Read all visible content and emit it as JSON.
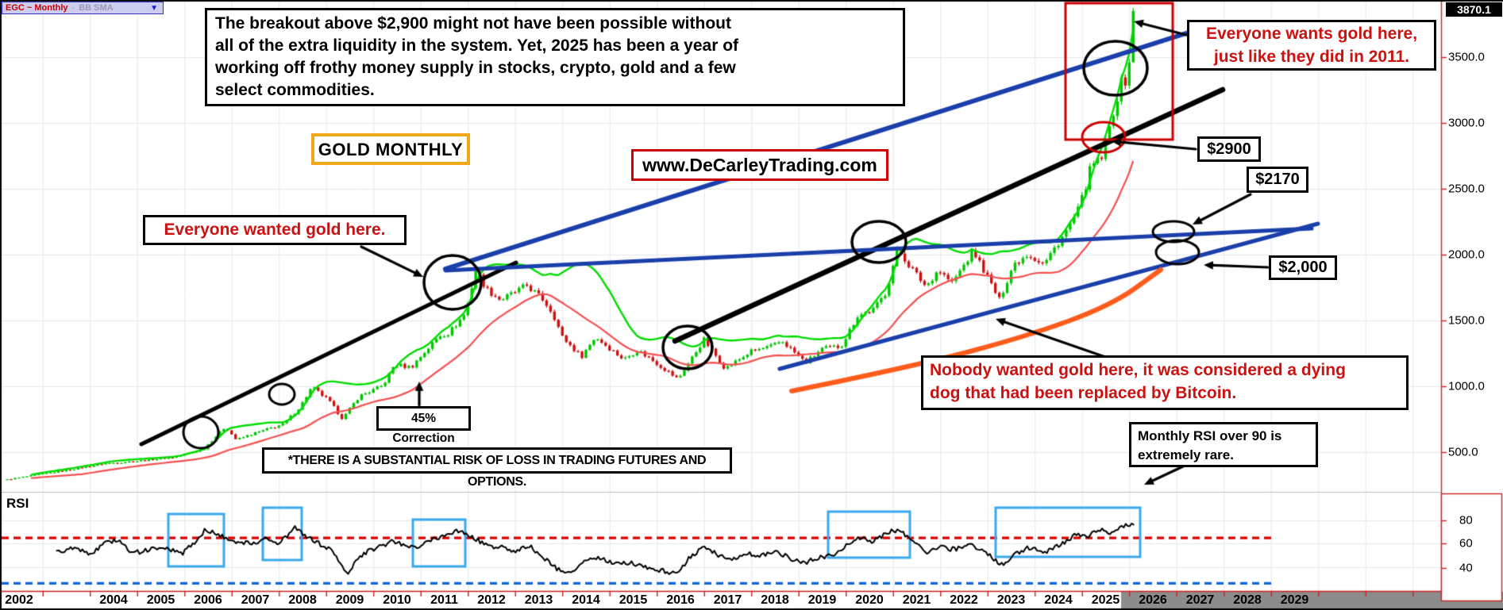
{
  "colors": {
    "candle_up": "#00c600",
    "candle_down": "#cf1010",
    "band_upper": "#00dd00",
    "band_lower": "#f65050",
    "trendline_black": "#000000",
    "trendline_blue": "#1a3faa",
    "curve_orange": "#ff5c1c",
    "rsi_box": "#3aa8ef",
    "overbought_dash": "#dd0000",
    "oversold_dash": "#1166dd",
    "axis_red": "#cc2222",
    "grid": "#e7e7ec",
    "future_strip": "#8c8c8c",
    "annotation_red_text": "#cc1111",
    "gold_border": "#f2a71b"
  },
  "symbol_bar": {
    "symbol": "EGC ~ Monthly",
    "separator": "-",
    "study": "BB SMA",
    "dropdown_icon": "▼"
  },
  "annotations": {
    "top_note_lines": [
      "The breakout above $2,900 might not have been possible without",
      "all of the extra liquidity in the system. Yet, 2025 has been a year of",
      "working off frothy money supply in stocks, crypto, gold and a few",
      "select commodities."
    ],
    "gold_monthly": "GOLD MONTHLY",
    "website": "www.DeCarleyTrading.com",
    "wanted_2011": "Everyone wanted gold here.",
    "wants_now_lines": [
      "Everyone wants gold here,",
      "just like they did in 2011."
    ],
    "price_2900": "$2900",
    "price_2170": "$2170",
    "price_2000": "$2,000",
    "correction": "45% Correction",
    "risk": "*THERE IS A SUBSTANTIAL RISK OF LOSS IN TRADING FUTURES AND OPTIONS.",
    "nobody_lines": [
      "Nobody wanted gold here, it was considered a dying",
      "dog that had been replaced by Bitcoin."
    ],
    "rsi_note_lines": [
      "Monthly RSI over 90 is",
      "extremely rare."
    ],
    "rsi_pane_label": "RSI"
  },
  "axes": {
    "years": [
      "2002",
      "2004",
      "2005",
      "2006",
      "2007",
      "2008",
      "2009",
      "2010",
      "2011",
      "2012",
      "2013",
      "2014",
      "2015",
      "2016",
      "2017",
      "2018",
      "2019",
      "2020",
      "2021",
      "2022",
      "2023",
      "2024",
      "2025",
      "2026",
      "2027",
      "2028",
      "2029"
    ],
    "price_ticks": [
      "3500.0",
      "3000.0",
      "2500.0",
      "2000.0",
      "1500.0",
      "1000.0",
      "500.0"
    ],
    "last_price": "3870.1",
    "rsi_ticks": [
      "80",
      "60",
      "40"
    ]
  },
  "chart_data": {
    "type": "candlestick",
    "title": "GOLD MONTHLY",
    "symbol": "EGC ~ Monthly",
    "study": "BB SMA",
    "x_axis": {
      "start_year": 2001.75,
      "end_year": 2029,
      "labeled_years_start": 2002,
      "future_shaded_from": 2025.4,
      "grid": true
    },
    "price_axis": {
      "ticks": [
        3500,
        3000,
        2500,
        2000,
        1500,
        1000,
        500
      ],
      "last_price": 3870.1
    },
    "monthly_close_anchors": [
      [
        2001.75,
        300
      ],
      [
        2002.3,
        330
      ],
      [
        2003.0,
        370
      ],
      [
        2003.8,
        420
      ],
      [
        2004.5,
        440
      ],
      [
        2005.3,
        470
      ],
      [
        2005.9,
        530
      ],
      [
        2006.37,
        700
      ],
      [
        2006.6,
        600
      ],
      [
        2006.9,
        640
      ],
      [
        2007.6,
        720
      ],
      [
        2007.95,
        850
      ],
      [
        2008.2,
        1000
      ],
      [
        2008.55,
        900
      ],
      [
        2008.85,
        760
      ],
      [
        2009.2,
        930
      ],
      [
        2009.7,
        1010
      ],
      [
        2009.95,
        1170
      ],
      [
        2010.3,
        1150
      ],
      [
        2010.9,
        1390
      ],
      [
        2011.1,
        1410
      ],
      [
        2011.45,
        1560
      ],
      [
        2011.67,
        1890
      ],
      [
        2011.9,
        1740
      ],
      [
        2012.2,
        1660
      ],
      [
        2012.75,
        1770
      ],
      [
        2013.1,
        1660
      ],
      [
        2013.3,
        1560
      ],
      [
        2013.5,
        1380
      ],
      [
        2013.9,
        1230
      ],
      [
        2014.2,
        1380
      ],
      [
        2014.8,
        1210
      ],
      [
        2015.1,
        1280
      ],
      [
        2015.5,
        1180
      ],
      [
        2015.95,
        1060
      ],
      [
        2016.5,
        1360
      ],
      [
        2016.95,
        1140
      ],
      [
        2017.5,
        1270
      ],
      [
        2017.95,
        1310
      ],
      [
        2018.15,
        1350
      ],
      [
        2018.65,
        1185
      ],
      [
        2019.0,
        1290
      ],
      [
        2019.4,
        1310
      ],
      [
        2019.75,
        1540
      ],
      [
        2020.1,
        1590
      ],
      [
        2020.35,
        1720
      ],
      [
        2020.6,
        2050
      ],
      [
        2020.85,
        1920
      ],
      [
        2021.2,
        1760
      ],
      [
        2021.45,
        1890
      ],
      [
        2021.75,
        1790
      ],
      [
        2022.2,
        2030
      ],
      [
        2022.45,
        1870
      ],
      [
        2022.75,
        1660
      ],
      [
        2023.05,
        1930
      ],
      [
        2023.35,
        2010
      ],
      [
        2023.7,
        1930
      ],
      [
        2023.95,
        2070
      ],
      [
        2024.2,
        2200
      ],
      [
        2024.45,
        2360
      ],
      [
        2024.7,
        2680
      ],
      [
        2024.9,
        2720
      ],
      [
        2025.05,
        2910
      ],
      [
        2025.2,
        3140
      ],
      [
        2025.33,
        3300
      ],
      [
        2025.45,
        3330
      ],
      [
        2025.55,
        3620
      ],
      [
        2025.62,
        3850
      ]
    ],
    "overlays": {
      "upper_band": "sma20_plus_2sd",
      "lower_band": "sma20_lower"
    },
    "levels": {
      "breakout": 2900,
      "resistance_from_2011": 2170,
      "round_support": 2000,
      "peak_2011": 1920,
      "correction_pct": 45
    },
    "rsi": {
      "overbought_level": 65,
      "oversold_level": 26,
      "ticks": [
        80,
        60,
        40
      ],
      "anchors": [
        [
          2002.8,
          52
        ],
        [
          2003.2,
          57
        ],
        [
          2003.5,
          50
        ],
        [
          2003.8,
          60
        ],
        [
          2004.1,
          63
        ],
        [
          2004.4,
          52
        ],
        [
          2004.8,
          55
        ],
        [
          2005.1,
          57
        ],
        [
          2005.45,
          51
        ],
        [
          2005.8,
          65
        ],
        [
          2005.95,
          72
        ],
        [
          2006.2,
          68
        ],
        [
          2006.45,
          63
        ],
        [
          2006.9,
          60
        ],
        [
          2007.2,
          64
        ],
        [
          2007.45,
          60
        ],
        [
          2007.7,
          67
        ],
        [
          2007.85,
          74
        ],
        [
          2008.1,
          66
        ],
        [
          2008.35,
          60
        ],
        [
          2008.6,
          55
        ],
        [
          2008.95,
          35
        ],
        [
          2009.3,
          52
        ],
        [
          2009.6,
          57
        ],
        [
          2009.9,
          62
        ],
        [
          2010.2,
          58
        ],
        [
          2010.5,
          58
        ],
        [
          2010.8,
          64
        ],
        [
          2011.05,
          68
        ],
        [
          2011.3,
          71
        ],
        [
          2011.6,
          66
        ],
        [
          2011.9,
          58
        ],
        [
          2012.2,
          57
        ],
        [
          2012.5,
          53
        ],
        [
          2012.8,
          58
        ],
        [
          2013.1,
          48
        ],
        [
          2013.4,
          38
        ],
        [
          2013.7,
          35
        ],
        [
          2014.0,
          45
        ],
        [
          2014.3,
          48
        ],
        [
          2014.6,
          42
        ],
        [
          2014.9,
          44
        ],
        [
          2015.2,
          41
        ],
        [
          2015.5,
          38
        ],
        [
          2015.9,
          34
        ],
        [
          2016.2,
          48
        ],
        [
          2016.5,
          58
        ],
        [
          2016.8,
          50
        ],
        [
          2017.1,
          47
        ],
        [
          2017.4,
          52
        ],
        [
          2017.7,
          50
        ],
        [
          2018.0,
          53
        ],
        [
          2018.3,
          48
        ],
        [
          2018.6,
          43
        ],
        [
          2018.9,
          48
        ],
        [
          2019.2,
          50
        ],
        [
          2019.5,
          58
        ],
        [
          2019.8,
          65
        ],
        [
          2020.1,
          62
        ],
        [
          2020.4,
          70
        ],
        [
          2020.6,
          72
        ],
        [
          2020.9,
          63
        ],
        [
          2021.2,
          53
        ],
        [
          2021.5,
          57
        ],
        [
          2021.8,
          55
        ],
        [
          2022.1,
          60
        ],
        [
          2022.4,
          54
        ],
        [
          2022.6,
          48
        ],
        [
          2022.85,
          41
        ],
        [
          2023.1,
          52
        ],
        [
          2023.4,
          57
        ],
        [
          2023.7,
          52
        ],
        [
          2024.0,
          58
        ],
        [
          2024.2,
          63
        ],
        [
          2024.4,
          68
        ],
        [
          2024.6,
          66
        ],
        [
          2024.8,
          70
        ],
        [
          2025.0,
          72
        ],
        [
          2025.1,
          68
        ],
        [
          2025.25,
          73
        ],
        [
          2025.4,
          76
        ],
        [
          2025.5,
          75
        ],
        [
          2025.62,
          79
        ]
      ]
    }
  }
}
